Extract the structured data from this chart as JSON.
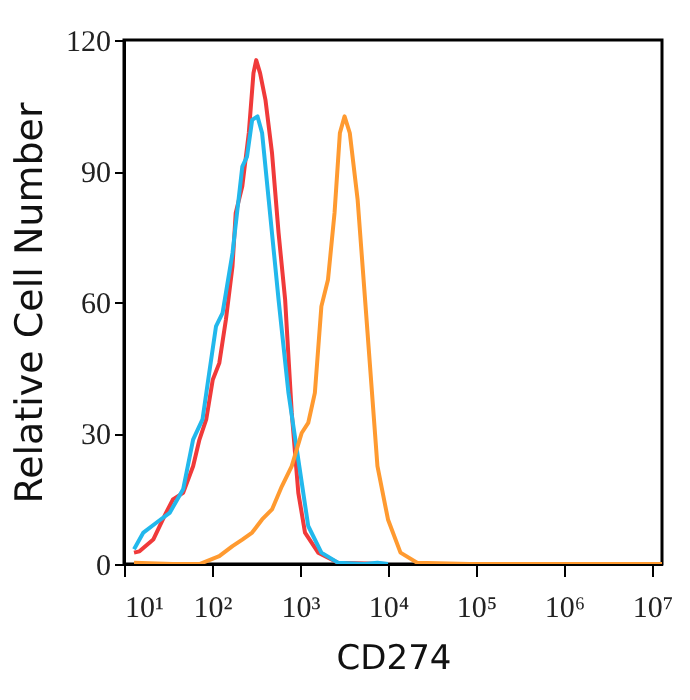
{
  "chart_data": {
    "type": "line",
    "xlabel": "CD274",
    "ylabel": "Relative Cell Number",
    "log": "x",
    "grid": false,
    "legend": false,
    "xlim": [
      10,
      13000000
    ],
    "ylim": [
      0,
      120
    ],
    "yticks": [
      0,
      30,
      60,
      90,
      120
    ],
    "xticks": [
      {
        "value": 10,
        "label": "10¹"
      },
      {
        "value": 100,
        "label": "10²"
      },
      {
        "value": 1000,
        "label": "10³"
      },
      {
        "value": 10000,
        "label": "10⁴"
      },
      {
        "value": 100000,
        "label": "10⁵"
      },
      {
        "value": 1000000,
        "label": "10⁶"
      },
      {
        "value": 10000000,
        "label": "10⁷"
      }
    ],
    "series": [
      {
        "color": "#f03a3a",
        "x": [
          13,
          15,
          21.5,
          30,
          36,
          47,
          61,
          72,
          86,
          102,
          121,
          144,
          171,
          186,
          221,
          262,
          296,
          318,
          352,
          405,
          481,
          571,
          678,
          806,
          957,
          1140,
          1610,
          2700,
          10000
        ],
        "values": [
          2.6,
          2.9,
          5.6,
          11.7,
          14.8,
          16.3,
          22.4,
          28.5,
          33.1,
          42.2,
          46,
          56,
          68.2,
          80.4,
          86.5,
          98.7,
          112.4,
          115.4,
          112.4,
          106.3,
          94.1,
          75.8,
          60.5,
          34.6,
          16.3,
          7.2,
          2.6,
          0.3,
          0
        ]
      },
      {
        "color": "#22b8ec",
        "x": [
          13,
          16.6,
          23.5,
          33,
          47,
          61,
          78,
          93,
          111,
          132,
          171,
          221,
          250,
          286,
          329,
          371,
          441,
          571,
          739,
          957,
          1240,
          1750,
          2700,
          5370,
          7590,
          10000
        ],
        "values": [
          3.4,
          7.2,
          9.5,
          11.7,
          17.1,
          28.5,
          33.1,
          43.8,
          54.4,
          57.5,
          71.2,
          91,
          93.3,
          101.7,
          102.5,
          98.7,
          83.4,
          60.5,
          39.2,
          23.9,
          8.7,
          2.6,
          0.3,
          0,
          0.3,
          0
        ]
      },
      {
        "color": "#ff9a30",
        "x": [
          13,
          36,
          72,
          121,
          171,
          221,
          286,
          371,
          481,
          622,
          806,
          1045,
          1240,
          1476,
          1750,
          2080,
          2470,
          2840,
          3210,
          3680,
          4520,
          5860,
          7590,
          10000,
          13870,
          21400,
          85000,
          13000000
        ],
        "values": [
          0.3,
          0,
          0,
          1.8,
          4.1,
          5.6,
          7.2,
          10.2,
          12.5,
          17.8,
          22.4,
          30,
          32.3,
          39.2,
          59,
          65.1,
          80.4,
          98.7,
          102.5,
          98.7,
          83.4,
          52.9,
          22.4,
          10.2,
          2.6,
          0.3,
          0,
          0
        ]
      }
    ]
  }
}
